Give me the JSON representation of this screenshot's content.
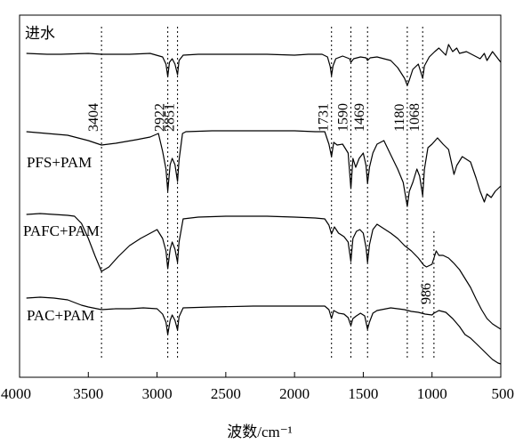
{
  "chart_data": {
    "type": "line",
    "title": "",
    "xlabel": "波数/cm⁻¹",
    "ylabel": "",
    "xlim": [
      4000,
      500
    ],
    "x_reversed": true,
    "x_ticks": [
      4000,
      3500,
      3000,
      2500,
      2000,
      1500,
      1000,
      500
    ],
    "y_axis_visible": false,
    "grid": false,
    "legend": "none",
    "line_color": "#000000",
    "reference_lines": [
      {
        "x": 3404,
        "label": "3404"
      },
      {
        "x": 2922,
        "label": "2922"
      },
      {
        "x": 2851,
        "label": "2851"
      },
      {
        "x": 1731,
        "label": "1731"
      },
      {
        "x": 1590,
        "label": "1590"
      },
      {
        "x": 1469,
        "label": "1469"
      },
      {
        "x": 1180,
        "label": "1180"
      },
      {
        "x": 1068,
        "label": "1068"
      },
      {
        "x": 986,
        "label": "986"
      }
    ],
    "series": [
      {
        "name": "进水",
        "points": [
          [
            3950,
            60
          ],
          [
            3800,
            61
          ],
          [
            3700,
            61
          ],
          [
            3500,
            60
          ],
          [
            3404,
            61
          ],
          [
            3200,
            61
          ],
          [
            3050,
            60
          ],
          [
            2960,
            64
          ],
          [
            2935,
            72
          ],
          [
            2922,
            86
          ],
          [
            2910,
            70
          ],
          [
            2890,
            66
          ],
          [
            2870,
            72
          ],
          [
            2851,
            84
          ],
          [
            2840,
            68
          ],
          [
            2810,
            62
          ],
          [
            2700,
            61
          ],
          [
            2500,
            61
          ],
          [
            2200,
            61
          ],
          [
            2000,
            62
          ],
          [
            1900,
            61
          ],
          [
            1800,
            61
          ],
          [
            1760,
            64
          ],
          [
            1740,
            75
          ],
          [
            1731,
            85
          ],
          [
            1720,
            74
          ],
          [
            1700,
            66
          ],
          [
            1650,
            63
          ],
          [
            1600,
            66
          ],
          [
            1590,
            70
          ],
          [
            1570,
            66
          ],
          [
            1520,
            64
          ],
          [
            1480,
            65
          ],
          [
            1469,
            68
          ],
          [
            1450,
            65
          ],
          [
            1400,
            64
          ],
          [
            1300,
            68
          ],
          [
            1250,
            76
          ],
          [
            1200,
            88
          ],
          [
            1180,
            96
          ],
          [
            1165,
            90
          ],
          [
            1140,
            78
          ],
          [
            1100,
            72
          ],
          [
            1068,
            88
          ],
          [
            1055,
            74
          ],
          [
            1020,
            64
          ],
          [
            980,
            58
          ],
          [
            950,
            54
          ],
          [
            900,
            62
          ],
          [
            880,
            50
          ],
          [
            850,
            58
          ],
          [
            820,
            54
          ],
          [
            800,
            60
          ],
          [
            750,
            58
          ],
          [
            700,
            62
          ],
          [
            650,
            66
          ],
          [
            620,
            60
          ],
          [
            600,
            68
          ],
          [
            560,
            58
          ],
          [
            500,
            70
          ]
        ]
      },
      {
        "name": "PFS+PAM",
        "points": [
          [
            3950,
            148
          ],
          [
            3800,
            150
          ],
          [
            3650,
            152
          ],
          [
            3500,
            158
          ],
          [
            3404,
            163
          ],
          [
            3300,
            161
          ],
          [
            3150,
            157
          ],
          [
            3050,
            154
          ],
          [
            2990,
            150
          ],
          [
            2960,
            170
          ],
          [
            2935,
            190
          ],
          [
            2922,
            215
          ],
          [
            2905,
            185
          ],
          [
            2890,
            178
          ],
          [
            2870,
            185
          ],
          [
            2851,
            204
          ],
          [
            2840,
            180
          ],
          [
            2815,
            150
          ],
          [
            2790,
            148
          ],
          [
            2600,
            147
          ],
          [
            2300,
            147
          ],
          [
            2000,
            147
          ],
          [
            1850,
            148
          ],
          [
            1780,
            148
          ],
          [
            1750,
            162
          ],
          [
            1731,
            176
          ],
          [
            1715,
            160
          ],
          [
            1690,
            163
          ],
          [
            1650,
            162
          ],
          [
            1610,
            172
          ],
          [
            1590,
            212
          ],
          [
            1575,
            178
          ],
          [
            1555,
            188
          ],
          [
            1530,
            178
          ],
          [
            1500,
            172
          ],
          [
            1480,
            186
          ],
          [
            1469,
            206
          ],
          [
            1455,
            188
          ],
          [
            1430,
            172
          ],
          [
            1400,
            162
          ],
          [
            1350,
            158
          ],
          [
            1300,
            174
          ],
          [
            1250,
            190
          ],
          [
            1210,
            205
          ],
          [
            1180,
            232
          ],
          [
            1165,
            215
          ],
          [
            1140,
            205
          ],
          [
            1110,
            190
          ],
          [
            1090,
            198
          ],
          [
            1068,
            220
          ],
          [
            1055,
            190
          ],
          [
            1030,
            166
          ],
          [
            1000,
            162
          ],
          [
            960,
            155
          ],
          [
            920,
            162
          ],
          [
            880,
            168
          ],
          [
            860,
            182
          ],
          [
            840,
            196
          ],
          [
            820,
            186
          ],
          [
            780,
            176
          ],
          [
            720,
            182
          ],
          [
            680,
            200
          ],
          [
            650,
            215
          ],
          [
            620,
            227
          ],
          [
            600,
            218
          ],
          [
            570,
            222
          ],
          [
            540,
            215
          ],
          [
            500,
            209
          ]
        ]
      },
      {
        "name": "PAFC+PAM",
        "points": [
          [
            3950,
            241
          ],
          [
            3850,
            240
          ],
          [
            3750,
            241
          ],
          [
            3650,
            242
          ],
          [
            3600,
            243
          ],
          [
            3550,
            251
          ],
          [
            3500,
            268
          ],
          [
            3450,
            288
          ],
          [
            3404,
            305
          ],
          [
            3350,
            300
          ],
          [
            3280,
            288
          ],
          [
            3200,
            276
          ],
          [
            3120,
            268
          ],
          [
            3060,
            263
          ],
          [
            3000,
            258
          ],
          [
            2960,
            268
          ],
          [
            2935,
            282
          ],
          [
            2922,
            302
          ],
          [
            2905,
            280
          ],
          [
            2890,
            272
          ],
          [
            2870,
            280
          ],
          [
            2851,
            295
          ],
          [
            2840,
            272
          ],
          [
            2810,
            246
          ],
          [
            2700,
            244
          ],
          [
            2500,
            243
          ],
          [
            2200,
            243
          ],
          [
            2000,
            244
          ],
          [
            1850,
            245
          ],
          [
            1780,
            246
          ],
          [
            1750,
            253
          ],
          [
            1731,
            263
          ],
          [
            1710,
            255
          ],
          [
            1680,
            262
          ],
          [
            1640,
            266
          ],
          [
            1610,
            272
          ],
          [
            1590,
            294
          ],
          [
            1575,
            268
          ],
          [
            1550,
            260
          ],
          [
            1525,
            258
          ],
          [
            1500,
            262
          ],
          [
            1480,
            278
          ],
          [
            1469,
            295
          ],
          [
            1455,
            275
          ],
          [
            1430,
            258
          ],
          [
            1400,
            252
          ],
          [
            1350,
            257
          ],
          [
            1300,
            262
          ],
          [
            1250,
            268
          ],
          [
            1200,
            276
          ],
          [
            1150,
            282
          ],
          [
            1100,
            290
          ],
          [
            1060,
            298
          ],
          [
            1040,
            300
          ],
          [
            1000,
            297
          ],
          [
            986,
            290
          ],
          [
            970,
            282
          ],
          [
            950,
            287
          ],
          [
            920,
            287
          ],
          [
            880,
            290
          ],
          [
            840,
            296
          ],
          [
            800,
            303
          ],
          [
            760,
            313
          ],
          [
            720,
            323
          ],
          [
            680,
            336
          ],
          [
            640,
            348
          ],
          [
            600,
            358
          ],
          [
            560,
            364
          ],
          [
            520,
            368
          ],
          [
            500,
            370
          ]
        ]
      },
      {
        "name": "PAC+PAM",
        "points": [
          [
            3950,
            335
          ],
          [
            3850,
            334
          ],
          [
            3750,
            335
          ],
          [
            3650,
            337
          ],
          [
            3600,
            340
          ],
          [
            3550,
            343
          ],
          [
            3500,
            345
          ],
          [
            3404,
            348
          ],
          [
            3300,
            347
          ],
          [
            3200,
            347
          ],
          [
            3100,
            346
          ],
          [
            3000,
            347
          ],
          [
            2960,
            353
          ],
          [
            2935,
            362
          ],
          [
            2922,
            376
          ],
          [
            2905,
            360
          ],
          [
            2890,
            354
          ],
          [
            2870,
            360
          ],
          [
            2851,
            371
          ],
          [
            2840,
            356
          ],
          [
            2810,
            346
          ],
          [
            2600,
            345
          ],
          [
            2300,
            344
          ],
          [
            2000,
            344
          ],
          [
            1850,
            344
          ],
          [
            1780,
            344
          ],
          [
            1750,
            348
          ],
          [
            1731,
            358
          ],
          [
            1715,
            349
          ],
          [
            1680,
            352
          ],
          [
            1640,
            353
          ],
          [
            1610,
            357
          ],
          [
            1590,
            366
          ],
          [
            1575,
            358
          ],
          [
            1550,
            355
          ],
          [
            1520,
            352
          ],
          [
            1490,
            355
          ],
          [
            1480,
            362
          ],
          [
            1469,
            370
          ],
          [
            1455,
            362
          ],
          [
            1430,
            352
          ],
          [
            1400,
            349
          ],
          [
            1300,
            346
          ],
          [
            1200,
            348
          ],
          [
            1150,
            350
          ],
          [
            1100,
            351
          ],
          [
            1050,
            353
          ],
          [
            1000,
            354
          ],
          [
            986,
            352
          ],
          [
            950,
            349
          ],
          [
            900,
            351
          ],
          [
            850,
            358
          ],
          [
            800,
            367
          ],
          [
            760,
            376
          ],
          [
            720,
            380
          ],
          [
            680,
            386
          ],
          [
            640,
            392
          ],
          [
            600,
            398
          ],
          [
            560,
            404
          ],
          [
            520,
            408
          ],
          [
            500,
            409
          ]
        ]
      }
    ]
  }
}
